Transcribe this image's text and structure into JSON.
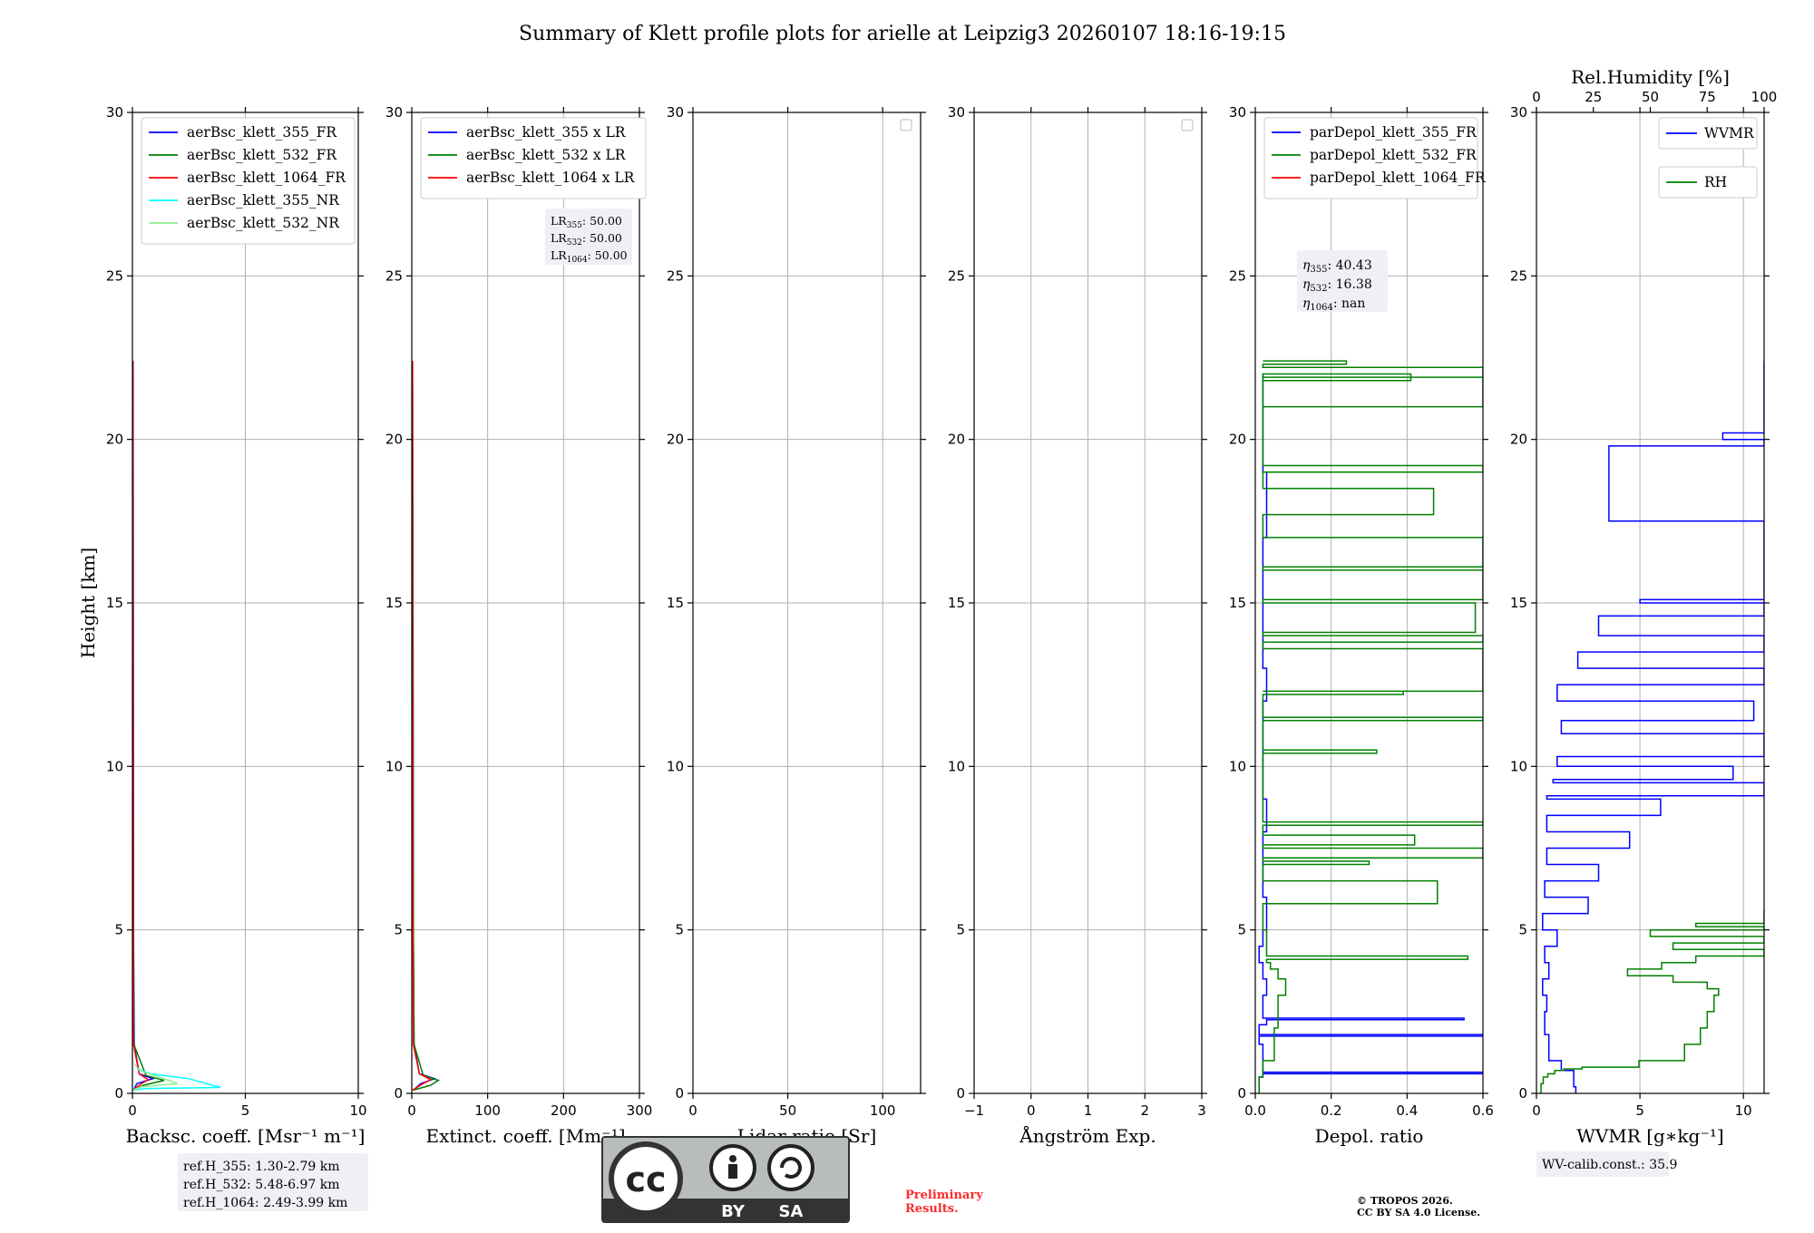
{
  "figure": {
    "title": "Summary of Klett profile plots for arielle at Leipzig3 20260107 18:16-19:15",
    "preliminary_line1": "Preliminary",
    "preliminary_line2": "Results.",
    "copyright_line1": "© TROPOS 2026.",
    "copyright_line2": "CC BY SA 4.0 License.",
    "cc_badge_by": "BY",
    "cc_badge_sa": "SA",
    "colors": {
      "blue": "#0000ff",
      "green": "#008000",
      "red": "#ff0000",
      "cyan": "#00ffff",
      "lightgreen": "#90ee90",
      "grid": "#b0b0b0",
      "note_bg": "#eef0f5",
      "prelim": "#ff2a2a"
    }
  },
  "chart_data": [
    {
      "id": "backscatter",
      "type": "line",
      "xlabel": "Backsc. coeff. [Msr⁻¹ m⁻¹]",
      "ylabel": "Height [km]",
      "xlim": [
        0,
        10
      ],
      "ylim": [
        0,
        30
      ],
      "xticks": [
        0,
        5,
        10
      ],
      "yticks": [
        0,
        5,
        10,
        15,
        20,
        25,
        30
      ],
      "grid": true,
      "legend": "top-left",
      "series": [
        {
          "name": "aerBsc_klett_355_FR",
          "color": "#0000ff",
          "x": [
            0.05,
            0.2,
            0.9,
            0.3,
            0.08,
            0.05,
            0.04,
            0.03
          ],
          "y": [
            0.1,
            0.3,
            0.45,
            0.6,
            1.5,
            5,
            15,
            22.4
          ]
        },
        {
          "name": "aerBsc_klett_532_FR",
          "color": "#008000",
          "x": [
            0.03,
            0.5,
            1.4,
            0.6,
            0.06,
            0.04,
            0.03,
            0.02
          ],
          "y": [
            0.1,
            0.25,
            0.4,
            0.55,
            1.5,
            5,
            15,
            22.4
          ]
        },
        {
          "name": "aerBsc_klett_1064_FR",
          "color": "#ff0000",
          "x": [
            0.02,
            0.4,
            0.7,
            0.3,
            0.05,
            0.04,
            0.03,
            0.02
          ],
          "y": [
            0.1,
            0.3,
            0.42,
            0.6,
            1.5,
            5,
            15,
            22.4
          ]
        },
        {
          "name": "aerBsc_klett_355_NR",
          "color": "#00ffff",
          "x": [
            0.0,
            0.6,
            3.9,
            2.5,
            0.8,
            0.2
          ],
          "y": [
            0.1,
            0.15,
            0.18,
            0.45,
            0.6,
            0.75
          ]
        },
        {
          "name": "aerBsc_klett_532_NR",
          "color": "#90ee90",
          "x": [
            0.0,
            0.4,
            2.0,
            1.2,
            0.3,
            0.1
          ],
          "y": [
            0.1,
            0.2,
            0.3,
            0.5,
            0.7,
            0.9
          ]
        }
      ],
      "notes": [
        "ref.H_355: 1.30-2.79 km",
        "ref.H_532: 5.48-6.97 km",
        "ref.H_1064: 2.49-3.99 km"
      ]
    },
    {
      "id": "extinction",
      "type": "line",
      "xlabel": "Extinct. coeff. [Mm⁻¹]",
      "xlim": [
        0,
        300
      ],
      "ylim": [
        0,
        30
      ],
      "xticks": [
        0,
        100,
        200,
        300
      ],
      "yticks": [
        0,
        5,
        10,
        15,
        20,
        25,
        30
      ],
      "grid": true,
      "legend": "top-left",
      "series": [
        {
          "name": "aerBsc_klett_355 x LR",
          "color": "#0000ff",
          "x": [
            2,
            12,
            30,
            10,
            3,
            2,
            1.5,
            1
          ],
          "y": [
            0.1,
            0.3,
            0.45,
            0.6,
            1.5,
            5,
            15,
            22.4
          ]
        },
        {
          "name": "aerBsc_klett_532 x LR",
          "color": "#008000",
          "x": [
            2,
            25,
            35,
            15,
            3,
            2,
            1.5,
            1
          ],
          "y": [
            0.1,
            0.25,
            0.4,
            0.55,
            1.5,
            5,
            15,
            22.4
          ]
        },
        {
          "name": "aerBsc_klett_1064 x LR",
          "color": "#ff0000",
          "x": [
            1,
            15,
            25,
            10,
            2,
            1.5,
            1,
            1
          ],
          "y": [
            0.1,
            0.3,
            0.42,
            0.6,
            1.5,
            5,
            15,
            22.4
          ]
        }
      ],
      "lr_box": [
        {
          "label": "LR",
          "sub": "355",
          "value": ": 50.00"
        },
        {
          "label": "LR",
          "sub": "532",
          "value": ": 50.00"
        },
        {
          "label": "LR",
          "sub": "1064",
          "value": ": 50.00"
        }
      ]
    },
    {
      "id": "lidar_ratio",
      "type": "line",
      "xlabel": "Lidar ratio [Sr]",
      "xlim": [
        0,
        120
      ],
      "ylim": [
        0,
        30
      ],
      "xticks": [
        0,
        50,
        100
      ],
      "yticks": [
        0,
        5,
        10,
        15,
        20,
        25,
        30
      ],
      "grid": true,
      "legend": "top-right (empty)",
      "series": []
    },
    {
      "id": "angstrom",
      "type": "line",
      "xlabel": "Ångström Exp.",
      "xlim": [
        -1,
        3
      ],
      "ylim": [
        0,
        30
      ],
      "xticks": [
        -1,
        0,
        1,
        2,
        3
      ],
      "yticks": [
        0,
        5,
        10,
        15,
        20,
        25,
        30
      ],
      "grid": true,
      "legend": "top-right (empty)",
      "series": []
    },
    {
      "id": "depol",
      "type": "line",
      "xlabel": "Depol. ratio",
      "xlim": [
        0,
        0.6
      ],
      "ylim": [
        0,
        30
      ],
      "xticks": [
        0.0,
        0.2,
        0.4,
        0.6
      ],
      "yticks": [
        0,
        5,
        10,
        15,
        20,
        25,
        30
      ],
      "grid": true,
      "legend": "top-left",
      "series": [
        {
          "name": "parDepol_klett_355_FR",
          "color": "#0000ff",
          "x": [
            0.01,
            0.02,
            0.6,
            0.02,
            0.01,
            0.6,
            0.01,
            0.03,
            0.55,
            0.02,
            0.03,
            0.02,
            0.01,
            0.02,
            0.03,
            0.02,
            0.02,
            0.03,
            0.02,
            0.02,
            0.02,
            0.03,
            0.02,
            0.02,
            0.02,
            0.03,
            0.02,
            0.02,
            0.02
          ],
          "y": [
            0.0,
            0.5,
            0.6,
            0.65,
            1.5,
            1.75,
            1.8,
            2.1,
            2.25,
            2.3,
            3.0,
            3.5,
            4.0,
            4.5,
            5.0,
            6.0,
            7.0,
            8.0,
            9.0,
            10.0,
            11.0,
            12.0,
            13.0,
            14.0,
            15.0,
            17.0,
            19.0,
            20.0,
            22.0
          ]
        },
        {
          "name": "parDepol_klett_532_FR",
          "color": "#008000",
          "x": [
            0.01,
            0.02,
            0.05,
            0.06,
            0.08,
            0.06,
            0.04,
            0.03,
            0.56,
            0.03,
            0.02,
            0.48,
            0.02,
            0.3,
            0.02,
            0.6,
            0.02,
            0.42,
            0.02,
            0.6,
            0.02,
            0.32,
            0.02,
            0.6,
            0.02,
            0.39,
            0.02,
            0.6,
            0.02,
            0.6,
            0.02,
            0.58,
            0.02,
            0.6,
            0.02,
            0.6,
            0.02,
            0.47,
            0.02,
            0.6,
            0.02,
            0.6,
            0.02,
            0.41,
            0.02,
            0.6,
            0.02,
            0.24,
            0.02
          ],
          "y": [
            0.0,
            0.5,
            1.0,
            2.0,
            3.0,
            3.5,
            3.8,
            4.0,
            4.1,
            4.2,
            5.0,
            5.8,
            6.5,
            7.0,
            7.1,
            7.2,
            7.5,
            7.6,
            7.9,
            8.2,
            8.3,
            10.4,
            10.5,
            11.4,
            11.5,
            12.2,
            12.3,
            12.3,
            13.6,
            13.8,
            14.0,
            14.1,
            15.0,
            15.1,
            16.0,
            16.1,
            17.0,
            17.7,
            18.5,
            19.0,
            19.2,
            21.9,
            21.0,
            21.8,
            22.0,
            21.9,
            22.2,
            22.3,
            22.4
          ]
        },
        {
          "name": "parDepol_klett_1064_FR",
          "color": "#ff0000",
          "x": [],
          "y": []
        }
      ],
      "eta_box": [
        {
          "label": "η",
          "sub": "355",
          "value": ": 40.43"
        },
        {
          "label": "η",
          "sub": "532",
          "value": ": 16.38"
        },
        {
          "label": "η",
          "sub": "1064",
          "value": ": nan"
        }
      ]
    },
    {
      "id": "wvmr",
      "type": "line",
      "xlabel": "WVMR [g∗kg⁻¹]",
      "xlim": [
        0,
        11
      ],
      "ylim": [
        0,
        30
      ],
      "xticks": [
        0,
        5,
        10
      ],
      "yticks": [
        0,
        5,
        10,
        15,
        20,
        25,
        30
      ],
      "top_xlabel": "Rel.Humidity [%]",
      "top_xlim": [
        0,
        100
      ],
      "top_xticks": [
        0,
        25,
        50,
        75,
        100
      ],
      "grid": true,
      "legend": "top-right",
      "series": [
        {
          "name": "WVMR",
          "color": "#0000ff",
          "x": [
            1.9,
            1.8,
            1.2,
            0.6,
            0.4,
            0.5,
            0.3,
            0.6,
            0.4,
            1.0,
            0.3,
            2.5,
            0.4,
            3.0,
            0.5,
            4.5,
            0.5,
            6.0,
            0.5,
            11.0,
            0.8,
            9.5,
            1.0,
            11.0,
            1.2,
            10.5,
            1.0,
            11.0,
            2.0,
            11.0,
            3.0,
            11.0,
            5.0,
            11.0,
            11.0,
            3.5,
            11.0,
            9.0,
            11.0,
            11.0,
            11.0
          ],
          "y": [
            0.0,
            0.2,
            0.7,
            1.0,
            1.8,
            2.5,
            3.0,
            3.5,
            4.0,
            4.5,
            5.0,
            5.5,
            6.0,
            6.5,
            7.0,
            7.5,
            8.0,
            8.5,
            9.0,
            9.1,
            9.5,
            9.6,
            10.0,
            10.3,
            11.0,
            11.4,
            12.0,
            12.5,
            13.0,
            13.5,
            14.0,
            14.6,
            15.0,
            15.1,
            17.5,
            17.5,
            19.8,
            20.0,
            20.2,
            21.3,
            22.4
          ]
        },
        {
          "name": "RH",
          "color": "#008000",
          "x_rh": [
            2,
            3,
            5,
            8,
            12,
            20,
            45,
            65,
            72,
            75,
            78,
            80,
            75,
            60,
            40,
            55,
            70,
            100,
            60,
            100,
            50,
            100,
            70,
            100,
            100
          ],
          "y": [
            0.0,
            0.3,
            0.5,
            0.6,
            0.7,
            0.75,
            0.8,
            1.0,
            1.5,
            2.0,
            2.5,
            3.0,
            3.2,
            3.4,
            3.6,
            3.8,
            4.0,
            4.2,
            4.4,
            4.6,
            4.8,
            5.0,
            5.1,
            5.2,
            5.6
          ]
        }
      ],
      "notes": [
        "WV-calib.const.: 35.9"
      ]
    }
  ]
}
